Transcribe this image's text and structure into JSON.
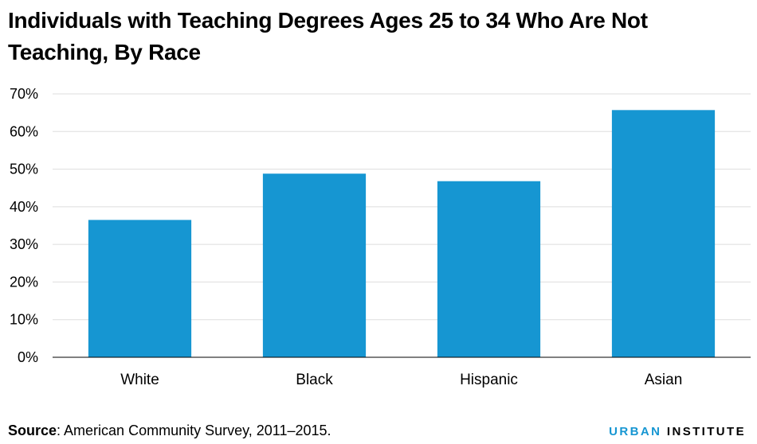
{
  "chart_data": {
    "type": "bar",
    "title": "Individuals with Teaching Degrees Ages 25 to 34 Who Are Not Teaching, By Race",
    "xlabel": "",
    "ylabel": "",
    "categories": [
      "White",
      "Black",
      "Hispanic",
      "Asian"
    ],
    "values": [
      36.5,
      48.8,
      46.8,
      65.7
    ],
    "ylim": [
      0,
      70
    ],
    "yticks": [
      0,
      10,
      20,
      30,
      40,
      50,
      60,
      70
    ],
    "ytick_labels": [
      "0%",
      "10%",
      "20%",
      "30%",
      "40%",
      "50%",
      "60%",
      "70%"
    ],
    "grid": true,
    "legend": "none",
    "bar_color": "#1696d2"
  },
  "footer": {
    "source_label": "Source",
    "source_text": ": American Community Survey, 2011–2015."
  },
  "brand": {
    "part1": "URBAN",
    "part2": " INSTITUTE",
    "accent_color": "#1696d2"
  }
}
